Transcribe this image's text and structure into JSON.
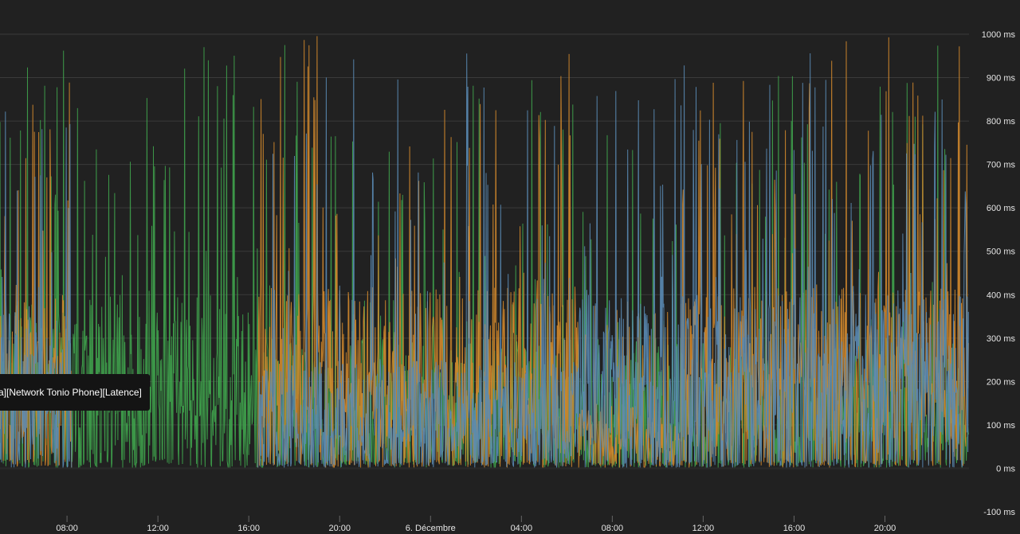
{
  "chart_data": {
    "type": "line",
    "title": "",
    "xlabel": "",
    "ylabel": "",
    "ylim": [
      -100,
      1000
    ],
    "y_ticks": [
      "1000 ms",
      "900 ms",
      "800 ms",
      "700 ms",
      "600 ms",
      "500 ms",
      "400 ms",
      "300 ms",
      "200 ms",
      "100 ms",
      "0 ms",
      "-100 ms"
    ],
    "y_tick_values": [
      1000,
      900,
      800,
      700,
      600,
      500,
      400,
      300,
      200,
      100,
      0,
      -100
    ],
    "x_ticks": [
      "08:00",
      "12:00",
      "16:00",
      "20:00",
      "6. Décembre",
      "04:00",
      "08:00",
      "12:00",
      "16:00",
      "20:00"
    ],
    "x_tick_hours": [
      8,
      12,
      16,
      20,
      24,
      28,
      32,
      36,
      40,
      44
    ],
    "x_range_hours": [
      5.05,
      47.7
    ],
    "grid": true,
    "series": [
      {
        "color": "#3fa34d",
        "segments": [
          {
            "from": 5.05,
            "to": 8.2,
            "low": 0,
            "base": 180,
            "high": 390,
            "spike": 970
          },
          {
            "from": 8.2,
            "to": 16.4,
            "low": 0,
            "base": 120,
            "high": 400,
            "spike": 990
          },
          {
            "from": 16.4,
            "to": 22.0,
            "low": 0,
            "base": 80,
            "high": 300,
            "spike": 1000
          },
          {
            "from": 22.0,
            "to": 35.0,
            "low": 0,
            "base": 60,
            "high": 300,
            "spike": 900
          },
          {
            "from": 35.0,
            "to": 47.7,
            "low": 0,
            "base": 60,
            "high": 300,
            "spike": 1000
          }
        ]
      },
      {
        "color": "#d48a2c",
        "segments": [
          {
            "from": 5.05,
            "to": 8.2,
            "low": 0,
            "base": 150,
            "high": 400,
            "spike": 900
          },
          {
            "from": 8.2,
            "to": 16.4,
            "low": 0,
            "base": 0,
            "high": 0,
            "spike": 0
          },
          {
            "from": 16.4,
            "to": 30.5,
            "low": 0,
            "base": 150,
            "high": 420,
            "spike": 1000
          },
          {
            "from": 30.5,
            "to": 35.0,
            "low": 0,
            "base": 40,
            "high": 150,
            "spike": 400
          },
          {
            "from": 35.0,
            "to": 47.7,
            "low": 0,
            "base": 180,
            "high": 420,
            "spike": 1000
          }
        ]
      },
      {
        "color": "#5a8bb5",
        "segments": [
          {
            "from": 5.05,
            "to": 8.2,
            "low": 0,
            "base": 120,
            "high": 380,
            "spike": 850
          },
          {
            "from": 8.2,
            "to": 16.4,
            "low": 0,
            "base": 0,
            "high": 0,
            "spike": 0
          },
          {
            "from": 16.4,
            "to": 30.5,
            "low": 0,
            "base": 60,
            "high": 250,
            "spike": 960
          },
          {
            "from": 30.5,
            "to": 35.0,
            "low": 0,
            "base": 180,
            "high": 400,
            "spike": 900
          },
          {
            "from": 35.0,
            "to": 47.7,
            "low": 0,
            "base": 150,
            "high": 400,
            "spike": 960
          }
        ]
      }
    ],
    "tooltip": "a][Network Tonio Phone][Latence]"
  }
}
